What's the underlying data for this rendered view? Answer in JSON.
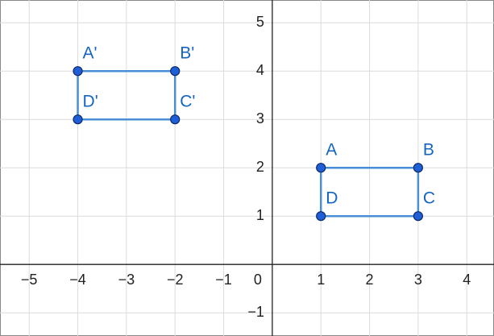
{
  "chart_data": {
    "type": "polygon",
    "xlim": [
      -5.6,
      4.56
    ],
    "ylim": [
      -1.48,
      5.47
    ],
    "xticks": [
      {
        "value": -5,
        "label": "−5"
      },
      {
        "value": -4,
        "label": "−4"
      },
      {
        "value": -3,
        "label": "−3"
      },
      {
        "value": -2,
        "label": "−2"
      },
      {
        "value": -1,
        "label": "−1"
      },
      0,
      1,
      2,
      3,
      4
    ],
    "yticks": [
      {
        "value": -1,
        "label": "−1"
      },
      1,
      2,
      3,
      4,
      5
    ],
    "grid": true,
    "shapes": [
      {
        "color": "#1565c0",
        "labels": [
          "A",
          "B",
          "C",
          "D"
        ],
        "x": [
          1,
          3,
          3,
          1
        ],
        "y": [
          2,
          2,
          1,
          1
        ]
      },
      {
        "color": "#1565c0",
        "labels": [
          "A'",
          "B'",
          "C'",
          "D'"
        ],
        "x": [
          -4,
          -2,
          -2,
          -4
        ],
        "y": [
          4,
          4,
          3,
          3
        ]
      }
    ]
  }
}
